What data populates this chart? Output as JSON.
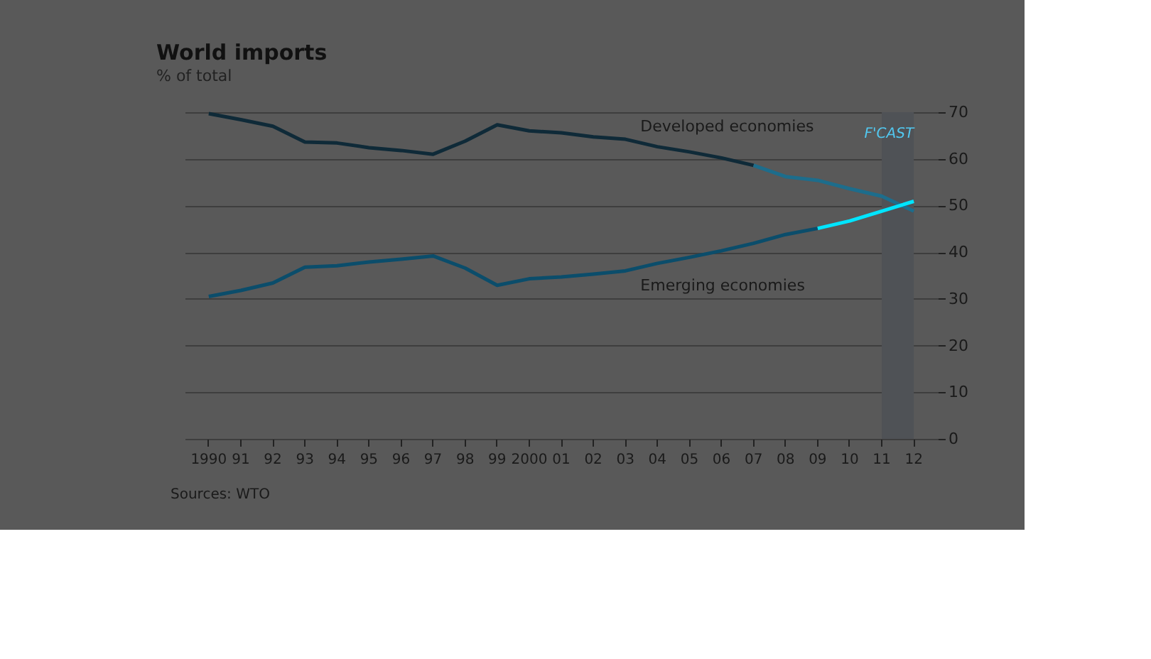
{
  "chart_data": {
    "type": "line",
    "title": "World imports",
    "subtitle": "% of total",
    "categories": [
      "1990",
      "91",
      "92",
      "93",
      "94",
      "95",
      "96",
      "97",
      "98",
      "99",
      "2000",
      "01",
      "02",
      "03",
      "04",
      "05",
      "06",
      "07",
      "08",
      "09",
      "10",
      "11",
      "12"
    ],
    "series": [
      {
        "name": "Developed economies",
        "color": "#0f2a38",
        "values": [
          69.7,
          68.4,
          67,
          63.6,
          63.4,
          62.4,
          61.8,
          61,
          63.8,
          67.3,
          66,
          65.6,
          64.7,
          64.2,
          62.6,
          61.5,
          60.2,
          58.6,
          null,
          null,
          null,
          null,
          null
        ]
      },
      {
        "color": "#1d6d8c",
        "values": [
          null,
          null,
          null,
          null,
          null,
          null,
          null,
          null,
          null,
          null,
          null,
          null,
          null,
          null,
          null,
          null,
          null,
          58.6,
          56.2,
          55.4,
          53.6,
          52,
          48.8
        ]
      },
      {
        "name": "Emerging economies",
        "color": "#0b4d6b",
        "values": [
          30.5,
          31.8,
          33.4,
          36.8,
          37.1,
          37.9,
          38.5,
          39.2,
          36.6,
          32.9,
          34.3,
          34.7,
          35.3,
          36,
          37.6,
          38.9,
          40.3,
          41.9,
          43.8,
          45.1,
          null,
          null,
          null
        ]
      },
      {
        "color": "#00e5ff",
        "values": [
          null,
          null,
          null,
          null,
          null,
          null,
          null,
          null,
          null,
          null,
          null,
          null,
          null,
          null,
          null,
          null,
          null,
          null,
          null,
          45.1,
          46.7,
          48.8,
          50.9
        ]
      }
    ],
    "ylim": [
      0,
      70
    ],
    "yticks": [
      0,
      10,
      20,
      30,
      40,
      50,
      60,
      70
    ],
    "grid": "y",
    "bands": [
      {
        "axis": "x",
        "from": "11",
        "to": "12",
        "label": "F'CAST",
        "color": "#4f5256"
      }
    ],
    "annotations": [
      "Sources: WTO"
    ]
  }
}
